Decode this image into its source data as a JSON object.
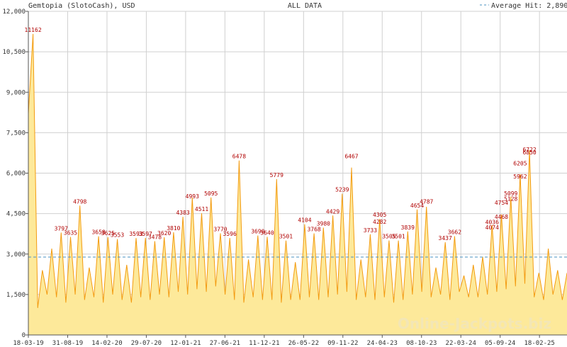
{
  "header": {
    "left_title": "Gemtopia (SlotoCash), USD",
    "center_title": "ALL DATA",
    "legend_label": "Average Hit: 2,890"
  },
  "watermark": "Online-Jackpots.biz",
  "colors": {
    "area_fill": "#fde99a",
    "line": "#f39c12",
    "average_line": "#4a90c0",
    "peak_label": "#b00000",
    "grid": "#d0d0d0"
  },
  "chart_data": {
    "type": "area",
    "title": "ALL DATA",
    "xlabel": "",
    "ylabel": "",
    "ylim": [
      0,
      12000
    ],
    "y_ticks": [
      0,
      1500,
      3000,
      4500,
      6000,
      7500,
      9000,
      10500,
      12000
    ],
    "y_tick_labels": [
      "0",
      "1,500",
      "3,000",
      "4,500",
      "6,000",
      "7,500",
      "9,000",
      "10,500",
      "12,000"
    ],
    "x_tick_labels": [
      "18-03-19",
      "31-08-19",
      "14-02-20",
      "29-07-20",
      "12-01-21",
      "27-06-21",
      "11-12-21",
      "26-05-22",
      "09-11-22",
      "24-04-23",
      "08-10-23",
      "22-03-24",
      "05-09-24",
      "18-02-25"
    ],
    "grid": true,
    "average_hit": 2890,
    "legend_position": "top-right",
    "series": [
      {
        "values": [
          8200,
          11162,
          1000,
          2400,
          1500,
          3200,
          1400,
          3797,
          1200,
          3635,
          1500,
          4798,
          1300,
          2500,
          1400,
          3658,
          1200,
          3625,
          1500,
          3553,
          1300,
          2600,
          1200,
          3593,
          1400,
          3597,
          1300,
          3478,
          1500,
          3620,
          1400,
          3810,
          1600,
          4383,
          1500,
          5095,
          1700,
          4511,
          1600,
          5099,
          1800,
          3770,
          1500,
          3596,
          1300,
          6467,
          1200,
          2800,
          1400,
          3690,
          1300,
          3640,
          1300,
          5779,
          1200,
          3501,
          1300,
          2700,
          1300,
          4104,
          1400,
          3768,
          1300,
          3980,
          1400,
          4429,
          1500,
          5239,
          1600,
          6205,
          1300,
          2800,
          1400,
          3733,
          1300,
          4305,
          1400,
          3505,
          1200,
          3501,
          1300,
          3839,
          1500,
          4654,
          1600,
          4754,
          1400,
          2500,
          1500,
          3437,
          1300,
          3662,
          1600,
          2200,
          1400,
          2600,
          1400,
          2900,
          1500,
          4074,
          1600,
          4468,
          1700,
          5128,
          1800,
          5962,
          1900,
          6850,
          1400,
          2300,
          1300,
          3200,
          1500,
          2400,
          1300,
          2300
        ]
      }
    ],
    "peak_labels": [
      "11162",
      "3797",
      "3635",
      "4036",
      "4798",
      "3658",
      "3625",
      "3553",
      "3593",
      "3597",
      "3478",
      "3620",
      "3810",
      "4383",
      "4993",
      "5095",
      "4511",
      "5099",
      "3770",
      "3596",
      "6478",
      "6467",
      "3690",
      "3640",
      "5779",
      "3501",
      "4104",
      "3768",
      "3980",
      "4429",
      "4787",
      "5239",
      "6205",
      "3733",
      "4305",
      "3505",
      "3839",
      "3501",
      "4654",
      "4754",
      "3437",
      "3662",
      "4074",
      "4282",
      "4468",
      "5128",
      "5962",
      "6722",
      "6850"
    ]
  }
}
